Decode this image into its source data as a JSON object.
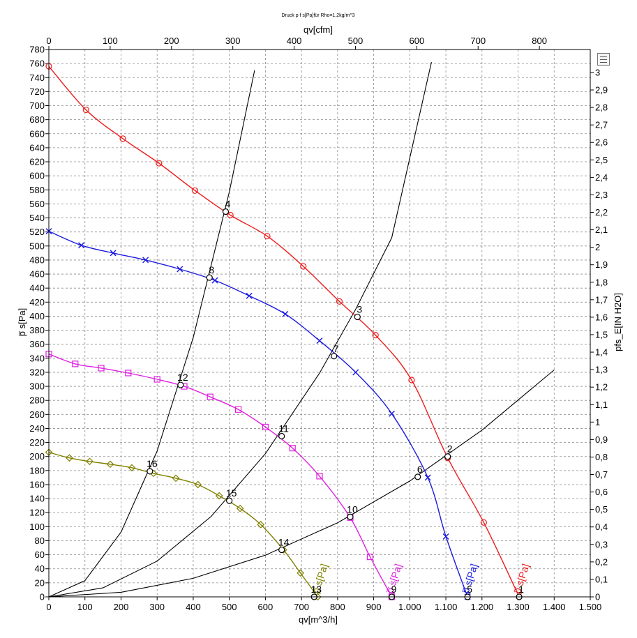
{
  "chart_data": {
    "type": "line",
    "title": "Druck p f s[Pa]für Rho=1,2kg/m^3",
    "xlabel": "qv[m^3/h]",
    "x2label": "qv[cfm]",
    "ylabel": "p̅ s[Pa]",
    "y2label": "pfs_E[IN H2O]",
    "xlim": [
      0,
      1500
    ],
    "ylim": [
      0,
      780
    ],
    "x2lim": [
      0,
      882.9
    ],
    "y2lim": [
      0,
      3.1315
    ],
    "grid": true,
    "x_ticks": [
      0,
      100,
      200,
      300,
      400,
      500,
      600,
      700,
      800,
      900,
      1000,
      1100,
      1200,
      1300,
      1400,
      1500
    ],
    "x_tick_labels": [
      "0",
      "100",
      "200",
      "300",
      "400",
      "500",
      "600",
      "700",
      "800",
      "900",
      "1.000",
      "1.100",
      "1.200",
      "1.300",
      "1.400",
      "1.500"
    ],
    "x2_ticks": [
      0,
      100,
      200,
      300,
      400,
      500,
      600,
      700,
      800
    ],
    "x2_tick_labels": [
      "0",
      "100",
      "200",
      "300",
      "400",
      "500",
      "600",
      "700",
      "800"
    ],
    "y_ticks": [
      0,
      20,
      40,
      60,
      80,
      100,
      120,
      140,
      160,
      180,
      200,
      220,
      240,
      260,
      280,
      300,
      320,
      340,
      360,
      380,
      400,
      420,
      440,
      460,
      480,
      500,
      520,
      540,
      560,
      580,
      600,
      620,
      640,
      660,
      680,
      700,
      720,
      740,
      760,
      780
    ],
    "y2_ticks": [
      0,
      0.1,
      0.2,
      0.3,
      0.4,
      0.5,
      0.6,
      0.7,
      0.8,
      0.9,
      1,
      1.1,
      1.2,
      1.3,
      1.4,
      1.5,
      1.6,
      1.7,
      1.8,
      1.9,
      2,
      2.1,
      2.2,
      2.3,
      2.4,
      2.5,
      2.6,
      2.7,
      2.8,
      2.9,
      3
    ],
    "y2_tick_labels": [
      "0",
      "0,1",
      "0,2",
      "0,3",
      "0,4",
      "0,5",
      "0,6",
      "0,7",
      "0,8",
      "0,9",
      "1",
      "1,1",
      "1,2",
      "1,3",
      "1,4",
      "1,5",
      "1,6",
      "1,7",
      "1,8",
      "1,9",
      "2",
      "2,1",
      "2,2",
      "2,3",
      "2,4",
      "2,5",
      "2,6",
      "2,7",
      "2,8",
      "2,9",
      "3"
    ],
    "series": [
      {
        "name": "p̅ s[Pa]",
        "color": "#ee1c1c",
        "marker": "circle",
        "x": [
          0,
          103,
          205,
          305,
          405,
          503,
          605,
          705,
          805,
          905,
          1005,
          1105,
          1205,
          1303
        ],
        "y": [
          756,
          694,
          653,
          618,
          579,
          544,
          514,
          471,
          421,
          373,
          309,
          198,
          106,
          0
        ]
      },
      {
        "name": "p̅ s[Pa]",
        "color": "#1a1ae0",
        "marker": "x",
        "x": [
          0,
          90,
          178,
          268,
          363,
          460,
          555,
          655,
          750,
          850,
          950,
          1050,
          1100,
          1160
        ],
        "y": [
          521,
          501,
          490,
          480,
          467,
          451,
          429,
          403,
          365,
          320,
          261,
          170,
          86,
          0
        ]
      },
      {
        "name": "p̅ s[Pa]",
        "color": "#e020e0",
        "marker": "square",
        "x": [
          0,
          73,
          145,
          220,
          300,
          375,
          447,
          525,
          600,
          675,
          750,
          835,
          890,
          950
        ],
        "y": [
          346,
          332,
          326,
          319,
          310,
          300,
          285,
          267,
          242,
          212,
          172,
          113,
          57,
          0
        ]
      },
      {
        "name": "p̅ s[Pa]",
        "color": "#808000",
        "marker": "diamond",
        "x": [
          0,
          57,
          113,
          170,
          230,
          290,
          352,
          413,
          472,
          530,
          587,
          650,
          697,
          745
        ],
        "y": [
          206,
          198,
          193,
          189,
          184,
          176,
          169,
          160,
          144,
          126,
          103,
          67,
          34,
          0
        ]
      }
    ],
    "system_curves": [
      {
        "x": [
          0,
          100,
          200,
          300,
          400,
          500,
          570
        ],
        "y": [
          0,
          23.1,
          92.3,
          207.8,
          369.4,
          577.2,
          750.3
        ]
      },
      {
        "x": [
          0,
          150,
          300,
          450,
          600,
          750,
          850,
          950,
          1060
        ],
        "y": [
          0,
          12.8,
          51,
          114.8,
          204.1,
          318.9,
          409.7,
          511.8,
          762
        ]
      },
      {
        "x": [
          0,
          200,
          400,
          600,
          800,
          1000,
          1200,
          1400
        ],
        "y": [
          0,
          6.6,
          26.4,
          59.4,
          105.6,
          165,
          237.6,
          323.4
        ]
      }
    ],
    "points": [
      {
        "label": "1",
        "x": 1303,
        "y": 0
      },
      {
        "label": "2",
        "x": 1105,
        "y": 200
      },
      {
        "label": "3",
        "x": 855,
        "y": 399
      },
      {
        "label": "4",
        "x": 490,
        "y": 549
      },
      {
        "label": "5",
        "x": 1160,
        "y": 0
      },
      {
        "label": "6",
        "x": 1022,
        "y": 171
      },
      {
        "label": "7",
        "x": 790,
        "y": 343
      },
      {
        "label": "8",
        "x": 445,
        "y": 455
      },
      {
        "label": "9",
        "x": 950,
        "y": 0
      },
      {
        "label": "10",
        "x": 835,
        "y": 114
      },
      {
        "label": "11",
        "x": 645,
        "y": 229
      },
      {
        "label": "12",
        "x": 365,
        "y": 302
      },
      {
        "label": "13",
        "x": 735,
        "y": 0
      },
      {
        "label": "14",
        "x": 645,
        "y": 67
      },
      {
        "label": "15",
        "x": 500,
        "y": 137
      },
      {
        "label": "16",
        "x": 280,
        "y": 179
      }
    ]
  }
}
